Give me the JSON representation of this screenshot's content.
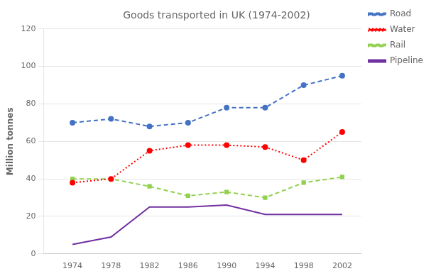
{
  "chart_data": {
    "type": "line",
    "title": "Goods transported in UK (1974-2002)",
    "ylabel": "Million tonnes",
    "x": [
      1974,
      1978,
      1982,
      1986,
      1990,
      1994,
      1998,
      2002
    ],
    "series": [
      {
        "name": "Road",
        "color": "#4472C4",
        "line_style": "dashed",
        "marker": "circle",
        "values": [
          70,
          72,
          68,
          70,
          78,
          78,
          90,
          95
        ]
      },
      {
        "name": "Water",
        "color": "#FF0000",
        "line_style": "dotted",
        "marker": "circle",
        "values": [
          38,
          40,
          55,
          58,
          58,
          57,
          50,
          65
        ]
      },
      {
        "name": "Rail",
        "color": "#92D050",
        "line_style": "dashed",
        "marker": "square",
        "values": [
          40,
          40,
          36,
          31,
          33,
          30,
          38,
          41
        ]
      },
      {
        "name": "Pipeline",
        "color": "#7030A0",
        "line_style": "solid",
        "marker": "none",
        "values": [
          5,
          9,
          25,
          25,
          26,
          21,
          21,
          21
        ]
      }
    ],
    "xlim": [
      1971,
      2004
    ],
    "xticks": [
      1974,
      1978,
      1982,
      1986,
      1990,
      1994,
      1998,
      2002
    ],
    "ylim": [
      0,
      120
    ],
    "yticks": [
      0,
      20,
      40,
      60,
      80,
      100,
      120
    ],
    "grid": "y",
    "legend": "right"
  }
}
